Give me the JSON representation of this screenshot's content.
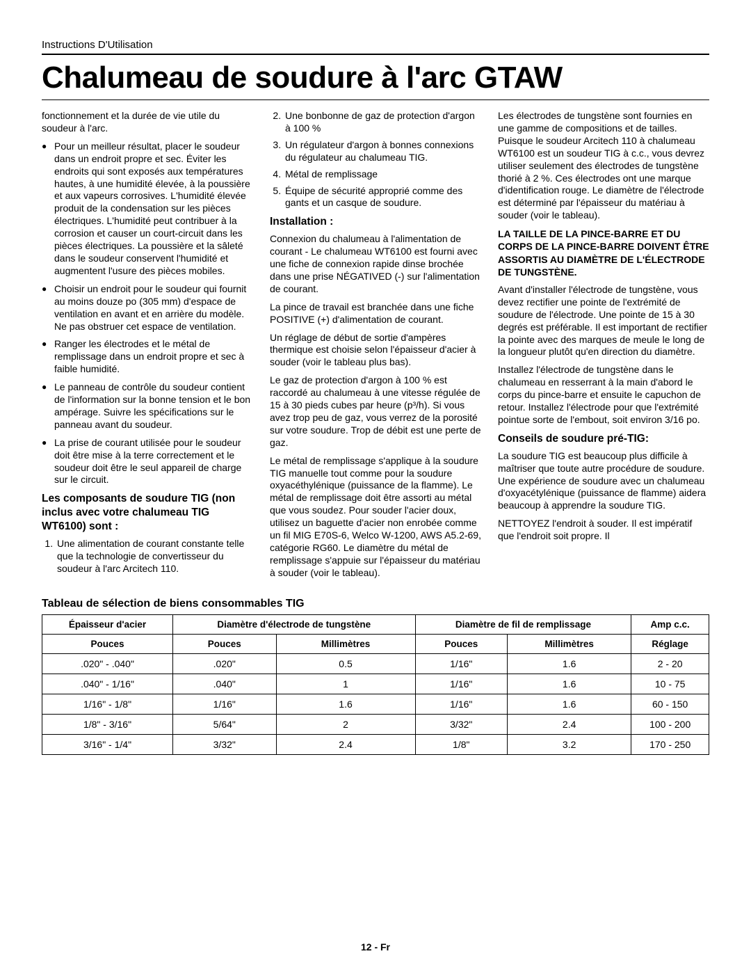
{
  "header": "Instructions D'Utilisation",
  "title": "Chalumeau de soudure à l'arc GTAW",
  "col1": {
    "intro": "fonctionnement et la durée de vie utile du soudeur à l'arc.",
    "bullets": [
      "Pour un meilleur résultat, placer le soudeur dans un endroit propre et sec. Éviter les endroits qui sont exposés aux températures hautes, à une humidité élevée, à la poussière et aux vapeurs corrosives. L'humidité élevée produit de la condensation sur les pièces électriques. L'humidité peut contribuer à la corrosion et causer un court-circuit dans les pièces électriques. La poussière et la sâleté dans le soudeur conservent l'humidité et augmentent l'usure des pièces mobiles.",
      "Choisir un endroit pour le soudeur qui fournit au moins douze po (305 mm) d'espace de ventilation en avant et en arrière du modèle. Ne pas obstruer cet espace de ventilation.",
      "Ranger les électrodes et le métal de remplissage dans un endroit propre et sec à faible humidité.",
      "Le panneau de contrôle du soudeur contient de l'information sur la bonne tension et le bon ampérage. Suivre les spécifications sur le panneau avant du soudeur.",
      "La prise de courant utilisée pour le soudeur doit être mise à la terre correctement et le soudeur doit être le seul appareil de charge sur le circuit."
    ],
    "components_head": "Les composants de soudure TIG (non inclus avec votre chalumeau TIG WT6100) sont :",
    "components_first": "Une alimentation de courant constante telle que la technologie de convertisseur du soudeur à l'arc Arcitech 110."
  },
  "col2": {
    "components_rest": [
      "Une bonbonne de gaz de protection d'argon à 100 %",
      "Un régulateur d'argon à bonnes connexions du régulateur au chalumeau TIG.",
      "Métal de remplissage",
      "Équipe de sécurité approprié comme des gants et un casque de soudure."
    ],
    "install_head": "Installation :",
    "install_p1": "Connexion du chalumeau à l'alimentation de courant - Le chalumeau WT6100 est fourni avec une fiche de connexion rapide dinse brochée dans une prise NÉGATIVED (-) sur l'alimentation de courant.",
    "install_p2": "La pince de travail est branchée dans une fiche POSITIVE (+) d'alimentation de courant.",
    "install_p3": "Un réglage de début de sortie d'ampères thermique est choisie selon l'épaisseur d'acier à souder (voir le tableau plus bas).",
    "install_p4": "Le gaz de protection d'argon à 100 % est raccordé au chalumeau à une vitesse régulée de 15 à 30 pieds cubes par heure (p³/h). Si vous avez trop peu de gaz, vous verrez de la porosité sur votre soudure. Trop de débit est une perte de gaz.",
    "install_p5": "Le métal de remplissage s'applique à la soudure TIG manuelle tout comme pour la soudure oxyacéthylénique (puissance de la flamme). Le métal de remplissage doit être assorti au métal que vous soudez. Pour souder l'acier doux, utilisez un baguette d'acier non enrobée comme un fil MIG E70S-6, Welco W-1200, AWS A5.2-69, catégorie RG60. Le diamètre du métal de remplissage s'appuie sur l'épaisseur du matériau à souder (voir le tableau)."
  },
  "col3": {
    "p1": "Les électrodes de tungstène sont fournies en une gamme de compositions et de tailles. Puisque le soudeur Arcitech 110 à chalumeau WT6100 est un soudeur TIG à c.c., vous devrez utiliser seulement des électrodes de tungstène thorié à 2 %. Ces électrodes ont une marque d'identification rouge. Le diamètre de l'électrode est déterminé par l'épaisseur du matériau à souder (voir le tableau).",
    "warn": "LA TAILLE DE LA PINCE-BARRE ET DU CORPS DE LA PINCE-BARRE DOIVENT ÊTRE ASSORTIS AU DIAMÈTRE DE L'ÉLECTRODE DE TUNGSTÈNE.",
    "p2": "Avant d'installer l'électrode de tungstène, vous devez rectifier une pointe de l'extrémité de soudure de l'électrode. Une pointe de 15 à 30 degrés est préférable. Il est important de rectifier la pointe avec des marques de meule le long de la longueur plutôt qu'en direction du diamètre.",
    "p3": "Installez l'électrode de tungstène dans le chalumeau en resserrant à la main d'abord le corps du pince-barre et ensuite le capuchon de retour. Installez l'électrode pour que l'extrémité pointue sorte de l'embout, soit environ 3/16 po.",
    "tips_head": "Conseils de soudure pré-TIG:",
    "p4": "La soudure TIG est beaucoup plus difficile à maîtriser que toute autre procédure de soudure. Une expérience de soudure avec un chalumeau d'oxyacétylénique (puissance de flamme) aidera beaucoup à apprendre la soudure TIG.",
    "p5": "NETTOYEZ l'endroit à souder. Il est impératif que l'endroit soit propre. Il"
  },
  "table": {
    "title": "Tableau de sélection de biens consommables TIG",
    "head_row1": [
      "Épaisseur d'acier",
      "Diamètre d'électrode de tungstène",
      "Diamètre de fil de remplissage",
      "Amp c.c."
    ],
    "head_row2": [
      "Pouces",
      "Pouces",
      "Millimètres",
      "Pouces",
      "Millimètres",
      "Réglage"
    ],
    "rows": [
      [
        ".020\" - .040\"",
        ".020\"",
        "0.5",
        "1/16\"",
        "1.6",
        "2 - 20"
      ],
      [
        ".040\" - 1/16\"",
        ".040\"",
        "1",
        "1/16\"",
        "1.6",
        "10 - 75"
      ],
      [
        "1/16\" - 1/8\"",
        "1/16\"",
        "1.6",
        "1/16\"",
        "1.6",
        "60 - 150"
      ],
      [
        "1/8\" - 3/16\"",
        "5/64\"",
        "2",
        "3/32\"",
        "2.4",
        "100 - 200"
      ],
      [
        "3/16\" - 1/4\"",
        "3/32\"",
        "2.4",
        "1/8\"",
        "3.2",
        "170 - 250"
      ]
    ]
  },
  "footer": "12 - Fr"
}
